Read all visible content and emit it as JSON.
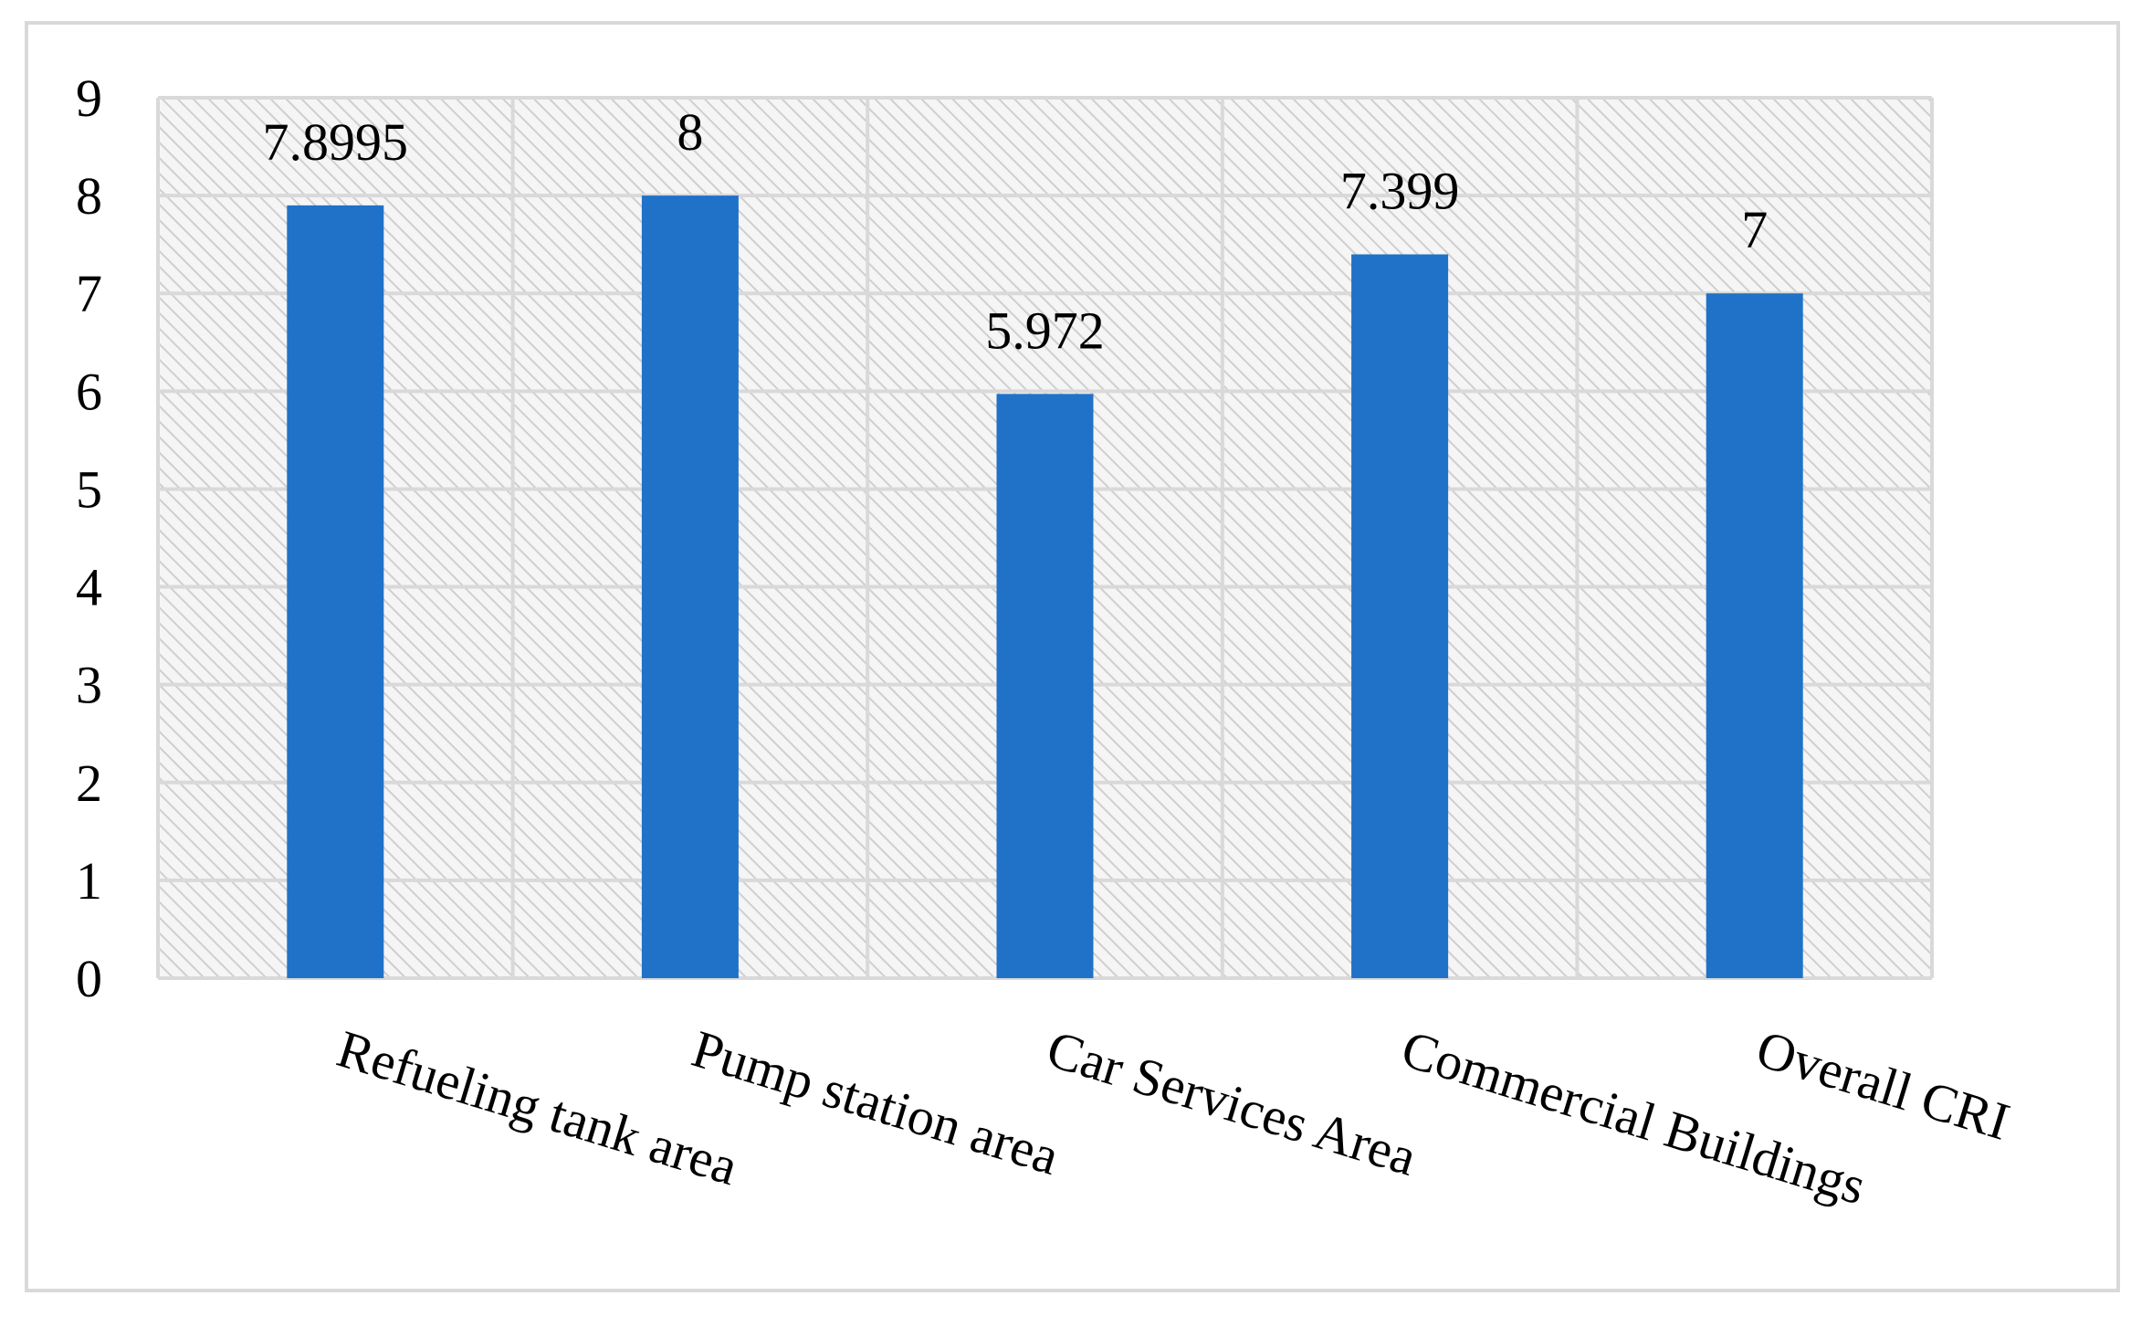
{
  "chart_data": {
    "type": "bar",
    "categories": [
      "Refueling tank area",
      "Pump station area",
      "Car Services Area",
      "Commercial Buildings",
      "Overall CRI"
    ],
    "values": [
      7.8995,
      8,
      5.972,
      7.399,
      7
    ],
    "data_labels": [
      "7.8995",
      "8",
      "5.972",
      "7.399",
      "7"
    ],
    "y_ticks": [
      "0",
      "1",
      "2",
      "3",
      "4",
      "5",
      "6",
      "7",
      "8",
      "9"
    ],
    "ylim": [
      0,
      9
    ],
    "title": "",
    "xlabel": "",
    "ylabel": "",
    "grid": true,
    "legend": "none",
    "category_label_rotation_deg": 17,
    "colors": {
      "bar": "#1f72c8",
      "grid": "#d9d9d9",
      "hatch": "#c8c8c8",
      "plot_bg": "#f4f4f4",
      "frame": "#d9d9d9",
      "text": "#000000"
    }
  }
}
